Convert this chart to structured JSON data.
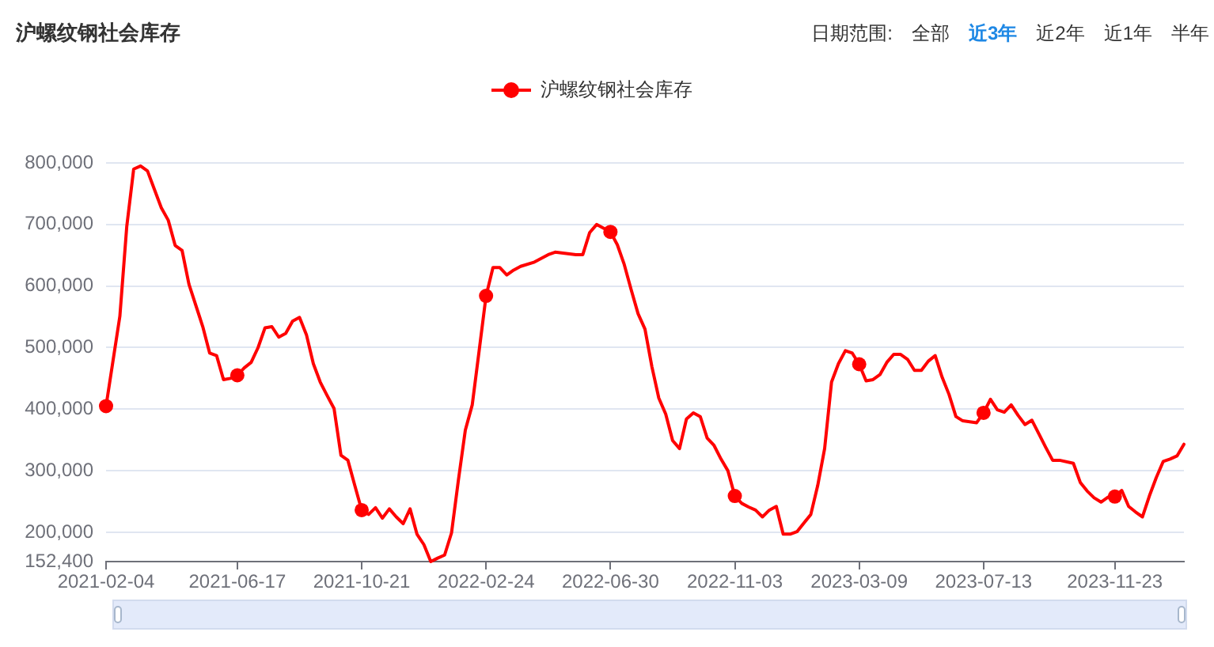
{
  "chart_data": {
    "type": "line",
    "title": "沪螺纹钢社会库存",
    "annotations": [
      "日期范围:",
      "全部",
      "近3年",
      "近2年",
      "近1年",
      "半年"
    ],
    "x": [
      "2021-02-04",
      "2021-02-18",
      "2021-02-25",
      "2021-03-04",
      "2021-03-11",
      "2021-03-18",
      "2021-03-25",
      "2021-04-01",
      "2021-04-08",
      "2021-04-15",
      "2021-04-22",
      "2021-04-29",
      "2021-05-13",
      "2021-05-20",
      "2021-05-27",
      "2021-06-03",
      "2021-06-10",
      "2021-06-17",
      "2021-06-24",
      "2021-07-01",
      "2021-07-08",
      "2021-07-15",
      "2021-07-22",
      "2021-07-29",
      "2021-08-05",
      "2021-08-12",
      "2021-08-19",
      "2021-08-26",
      "2021-09-02",
      "2021-09-09",
      "2021-09-16",
      "2021-09-23",
      "2021-09-30",
      "2021-10-07",
      "2021-10-14",
      "2021-10-21",
      "2021-10-28",
      "2021-11-04",
      "2021-11-11",
      "2021-11-18",
      "2021-11-25",
      "2021-12-02",
      "2021-12-09",
      "2021-12-16",
      "2021-12-23",
      "2021-12-30",
      "2022-01-06",
      "2022-01-13",
      "2022-01-20",
      "2022-01-27",
      "2022-02-03",
      "2022-02-10",
      "2022-02-17",
      "2022-02-24",
      "2022-03-03",
      "2022-03-10",
      "2022-03-17",
      "2022-03-24",
      "2022-03-31",
      "2022-04-14",
      "2022-04-28",
      "2022-05-05",
      "2022-05-26",
      "2022-06-02",
      "2022-06-09",
      "2022-06-16",
      "2022-06-23",
      "2022-06-30",
      "2022-07-07",
      "2022-07-14",
      "2022-07-21",
      "2022-07-28",
      "2022-08-04",
      "2022-08-11",
      "2022-08-18",
      "2022-08-25",
      "2022-09-01",
      "2022-09-08",
      "2022-09-15",
      "2022-09-22",
      "2022-09-29",
      "2022-10-06",
      "2022-10-13",
      "2022-10-20",
      "2022-10-27",
      "2022-11-03",
      "2022-11-10",
      "2022-11-17",
      "2022-11-24",
      "2022-12-01",
      "2022-12-08",
      "2022-12-15",
      "2022-12-22",
      "2022-12-29",
      "2023-01-05",
      "2023-01-19",
      "2023-01-26",
      "2023-02-02",
      "2023-02-09",
      "2023-02-16",
      "2023-02-23",
      "2023-03-02",
      "2023-03-09",
      "2023-03-16",
      "2023-03-23",
      "2023-03-30",
      "2023-04-06",
      "2023-04-13",
      "2023-04-20",
      "2023-04-27",
      "2023-05-04",
      "2023-05-11",
      "2023-05-18",
      "2023-05-25",
      "2023-06-01",
      "2023-06-08",
      "2023-06-15",
      "2023-06-22",
      "2023-07-06",
      "2023-07-13",
      "2023-07-20",
      "2023-07-27",
      "2023-08-03",
      "2023-08-10",
      "2023-08-17",
      "2023-08-24",
      "2023-08-31",
      "2023-09-07",
      "2023-09-14",
      "2023-09-21",
      "2023-09-28",
      "2023-10-12",
      "2023-10-19",
      "2023-10-26",
      "2023-11-02",
      "2023-11-09",
      "2023-11-16",
      "2023-11-23",
      "2023-11-30",
      "2023-12-07",
      "2023-12-14",
      "2023-12-21",
      "2023-12-28",
      "2024-01-04",
      "2024-01-11",
      "2024-01-18",
      "2024-01-25",
      "2024-02-01"
    ],
    "series": [
      {
        "name": "沪螺纹钢社会库存",
        "color": "#ff0000",
        "values": [
          405000,
          551000,
          697000,
          790000,
          795000,
          787000,
          757000,
          727000,
          707000,
          666000,
          658000,
          603000,
          534000,
          491000,
          487000,
          448000,
          450000,
          455000,
          467000,
          476000,
          500000,
          532000,
          534000,
          517000,
          523000,
          543000,
          549000,
          521000,
          474000,
          444000,
          422000,
          401000,
          325000,
          317000,
          276000,
          236000,
          229000,
          240000,
          223000,
          238000,
          225000,
          214000,
          238000,
          197000,
          180000,
          152400,
          158000,
          163000,
          199000,
          285000,
          366000,
          407000,
          495000,
          584000,
          630000,
          630000,
          618000,
          626000,
          632000,
          639000,
          651000,
          655000,
          651000,
          651000,
          687000,
          700000,
          694000,
          688000,
          667000,
          635000,
          594000,
          555000,
          530000,
          469000,
          418000,
          392000,
          349000,
          336000,
          384000,
          394000,
          388000,
          353000,
          341000,
          319000,
          300000,
          259000,
          247000,
          241000,
          236000,
          225000,
          236000,
          242000,
          197000,
          197000,
          201000,
          229000,
          276000,
          336000,
          444000,
          474000,
          495000,
          491000,
          473000,
          446000,
          448000,
          456000,
          476000,
          489000,
          489000,
          481000,
          463000,
          463000,
          478000,
          487000,
          452000,
          424000,
          388000,
          381000,
          378000,
          394000,
          416000,
          399000,
          395000,
          407000,
          390000,
          375000,
          382000,
          360000,
          338000,
          317000,
          317000,
          312000,
          281000,
          267000,
          256000,
          249000,
          257000,
          258000,
          268000,
          242000,
          233000,
          225000,
          259000,
          289000,
          315000,
          319000,
          324000,
          343000
        ]
      },
      {
        "type": "scatter",
        "color": "#ff0000",
        "marker": "circle",
        "x": [
          "2021-02-04",
          "2021-06-17",
          "2021-10-21",
          "2022-02-24",
          "2022-06-30",
          "2022-11-03",
          "2023-03-09",
          "2023-07-13",
          "2023-11-23"
        ],
        "values": [
          405000,
          455000,
          236000,
          584000,
          688000,
          259000,
          473000,
          394000,
          258000
        ]
      }
    ],
    "xlim": [
      "2021-02-04",
      "2024-02-01"
    ],
    "xticks": [
      "2021-02-04",
      "2021-06-17",
      "2021-10-21",
      "2022-02-24",
      "2022-06-30",
      "2022-11-03",
      "2023-03-09",
      "2023-07-13",
      "2023-11-23"
    ],
    "ylim": [
      152400,
      800000
    ],
    "yticks": [
      {
        "value": 152400,
        "label": "152,400"
      },
      {
        "value": 200000,
        "label": "200,000"
      },
      {
        "value": 300000,
        "label": "300,000"
      },
      {
        "value": 400000,
        "label": "400,000"
      },
      {
        "value": 500000,
        "label": "500,000"
      },
      {
        "value": 600000,
        "label": "600,000"
      },
      {
        "value": 700000,
        "label": "700,000"
      },
      {
        "value": 800000,
        "label": "800,000"
      }
    ],
    "grid": "y",
    "legend": "top",
    "line_style": "solid"
  }
}
